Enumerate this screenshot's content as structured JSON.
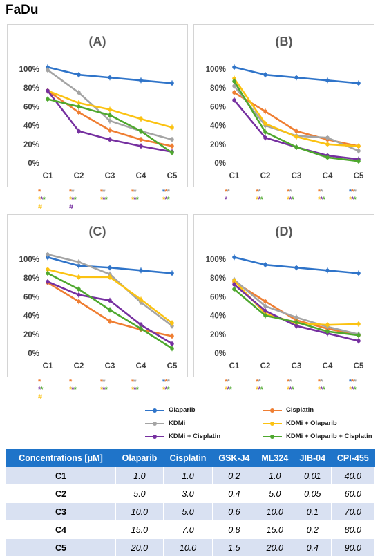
{
  "figure_title": "FaDu",
  "colors": {
    "olaparib": "#2f74c9",
    "cisplatin": "#ef7e32",
    "kdmi": "#a4a4a4",
    "kdmi_olaparib": "#fbc212",
    "kdmi_cisplatin": "#7630a0",
    "kdmi_olaparib_cisplatin": "#4ea82e"
  },
  "chart_data": [
    {
      "type": "line",
      "title": "(A)",
      "categories": [
        "C1",
        "C2",
        "C3",
        "C4",
        "C5"
      ],
      "ylim": [
        0,
        1.0
      ],
      "yticks": [
        "0%",
        "20%",
        "40%",
        "60%",
        "80%",
        "100%"
      ],
      "grid": false,
      "series": [
        {
          "name": "Olaparib",
          "color_key": "olaparib",
          "values": [
            1.02,
            0.94,
            0.91,
            0.88,
            0.85
          ]
        },
        {
          "name": "Cisplatin",
          "color_key": "cisplatin",
          "values": [
            0.77,
            0.54,
            0.35,
            0.25,
            0.18
          ]
        },
        {
          "name": "KDMi",
          "color_key": "kdmi",
          "values": [
            0.99,
            0.75,
            0.45,
            0.34,
            0.25
          ]
        },
        {
          "name": "KDMi + Olaparib",
          "color_key": "kdmi_olaparib",
          "values": [
            0.77,
            0.64,
            0.57,
            0.47,
            0.38
          ]
        },
        {
          "name": "KDMi + Cisplatin",
          "color_key": "kdmi_cisplatin",
          "values": [
            0.77,
            0.34,
            0.25,
            0.18,
            0.12
          ]
        },
        {
          "name": "KDMi + Olaparib + Cisplatin",
          "color_key": "kdmi_olaparib_cisplatin",
          "values": [
            0.68,
            0.6,
            0.51,
            0.34,
            0.11
          ]
        }
      ],
      "significance": [
        [
          [
            [
              "*",
              "cisplatin"
            ]
          ],
          [
            [
              "*",
              "kdmi_olaparib"
            ],
            [
              "*",
              "kdmi_cisplatin"
            ],
            [
              "*",
              "kdmi_olaparib_cisplatin"
            ]
          ],
          [
            [
              "#",
              "kdmi_olaparib"
            ]
          ]
        ],
        [
          [
            [
              "*",
              "cisplatin"
            ],
            [
              "*",
              "kdmi"
            ]
          ],
          [
            [
              "*",
              "kdmi_olaparib"
            ],
            [
              "*",
              "kdmi_cisplatin"
            ],
            [
              "*",
              "kdmi_olaparib_cisplatin"
            ]
          ],
          [
            [
              "#",
              "kdmi_cisplatin"
            ]
          ]
        ],
        [
          [
            [
              "*",
              "cisplatin"
            ],
            [
              "*",
              "kdmi"
            ]
          ],
          [
            [
              "*",
              "kdmi_olaparib"
            ],
            [
              "*",
              "kdmi_cisplatin"
            ],
            [
              "*",
              "kdmi_olaparib_cisplatin"
            ]
          ]
        ],
        [
          [
            [
              "*",
              "cisplatin"
            ],
            [
              "*",
              "kdmi"
            ]
          ],
          [
            [
              "*",
              "kdmi_olaparib"
            ],
            [
              "*",
              "kdmi_cisplatin"
            ],
            [
              "*",
              "kdmi_olaparib_cisplatin"
            ]
          ]
        ],
        [
          [
            [
              "*",
              "olaparib"
            ],
            [
              "*",
              "cisplatin"
            ],
            [
              "*",
              "kdmi"
            ]
          ],
          [
            [
              "*",
              "kdmi_olaparib"
            ],
            [
              "*",
              "kdmi_cisplatin"
            ],
            [
              "*",
              "kdmi_olaparib_cisplatin"
            ]
          ]
        ]
      ]
    },
    {
      "type": "line",
      "title": "(B)",
      "categories": [
        "C1",
        "C2",
        "C3",
        "C4",
        "C5"
      ],
      "ylim": [
        0,
        1.0
      ],
      "yticks": [
        "0%",
        "20%",
        "40%",
        "60%",
        "80%",
        "100%"
      ],
      "grid": false,
      "series": [
        {
          "name": "Olaparib",
          "color_key": "olaparib",
          "values": [
            1.02,
            0.94,
            0.91,
            0.88,
            0.85
          ]
        },
        {
          "name": "Cisplatin",
          "color_key": "cisplatin",
          "values": [
            0.75,
            0.55,
            0.34,
            0.25,
            0.18
          ]
        },
        {
          "name": "KDMi",
          "color_key": "kdmi",
          "values": [
            0.82,
            0.4,
            0.29,
            0.27,
            0.13
          ]
        },
        {
          "name": "KDMi + Olaparib",
          "color_key": "kdmi_olaparib",
          "values": [
            0.9,
            0.42,
            0.28,
            0.2,
            0.18
          ]
        },
        {
          "name": "KDMi + Cisplatin",
          "color_key": "kdmi_cisplatin",
          "values": [
            0.67,
            0.27,
            0.17,
            0.08,
            0.04
          ]
        },
        {
          "name": "KDMi + Olaparib + Cisplatin",
          "color_key": "kdmi_olaparib_cisplatin",
          "values": [
            0.87,
            0.33,
            0.17,
            0.06,
            0.02
          ]
        }
      ],
      "significance": [
        [
          [
            [
              "*",
              "cisplatin"
            ],
            [
              "*",
              "kdmi"
            ]
          ],
          [
            [
              "*",
              "kdmi_cisplatin"
            ]
          ]
        ],
        [
          [
            [
              "*",
              "cisplatin"
            ],
            [
              "*",
              "kdmi"
            ]
          ],
          [
            [
              "*",
              "kdmi_olaparib"
            ],
            [
              "*",
              "kdmi_cisplatin"
            ],
            [
              "*",
              "kdmi_olaparib_cisplatin"
            ]
          ]
        ],
        [
          [
            [
              "*",
              "cisplatin"
            ],
            [
              "*",
              "kdmi"
            ]
          ],
          [
            [
              "*",
              "kdmi_olaparib"
            ],
            [
              "*",
              "kdmi_cisplatin"
            ],
            [
              "*",
              "kdmi_olaparib_cisplatin"
            ]
          ]
        ],
        [
          [
            [
              "*",
              "cisplatin"
            ],
            [
              "*",
              "kdmi"
            ]
          ],
          [
            [
              "*",
              "kdmi_olaparib"
            ],
            [
              "*",
              "kdmi_cisplatin"
            ],
            [
              "*",
              "kdmi_olaparib_cisplatin"
            ]
          ]
        ],
        [
          [
            [
              "*",
              "olaparib"
            ],
            [
              "*",
              "cisplatin"
            ],
            [
              "*",
              "kdmi"
            ]
          ],
          [
            [
              "*",
              "kdmi_olaparib"
            ],
            [
              "*",
              "kdmi_cisplatin"
            ],
            [
              "*",
              "kdmi_olaparib_cisplatin"
            ]
          ]
        ]
      ]
    },
    {
      "type": "line",
      "title": "(C)",
      "categories": [
        "C1",
        "C2",
        "C3",
        "C4",
        "C5"
      ],
      "ylim": [
        0,
        1.0
      ],
      "yticks": [
        "0%",
        "20%",
        "40%",
        "60%",
        "80%",
        "100%"
      ],
      "grid": false,
      "series": [
        {
          "name": "Olaparib",
          "color_key": "olaparib",
          "values": [
            1.02,
            0.93,
            0.91,
            0.88,
            0.85
          ]
        },
        {
          "name": "Cisplatin",
          "color_key": "cisplatin",
          "values": [
            0.75,
            0.55,
            0.34,
            0.25,
            0.18
          ]
        },
        {
          "name": "KDMi",
          "color_key": "kdmi",
          "values": [
            1.05,
            0.97,
            0.84,
            0.54,
            0.29
          ]
        },
        {
          "name": "KDMi + Olaparib",
          "color_key": "kdmi_olaparib",
          "values": [
            0.89,
            0.81,
            0.81,
            0.57,
            0.32
          ]
        },
        {
          "name": "KDMi + Cisplatin",
          "color_key": "kdmi_cisplatin",
          "values": [
            0.76,
            0.62,
            0.56,
            0.3,
            0.1
          ]
        },
        {
          "name": "KDMi + Olaparib + Cisplatin",
          "color_key": "kdmi_olaparib_cisplatin",
          "values": [
            0.85,
            0.68,
            0.46,
            0.26,
            0.05
          ]
        }
      ],
      "significance": [
        [
          [
            [
              "*",
              "cisplatin"
            ]
          ],
          [
            [
              "*",
              "kdmi_cisplatin"
            ],
            [
              "*",
              "kdmi_olaparib_cisplatin"
            ]
          ],
          [
            [
              "#",
              "kdmi_olaparib"
            ]
          ]
        ],
        [
          [
            [
              "*",
              "cisplatin"
            ]
          ],
          [
            [
              "*",
              "kdmi_olaparib"
            ],
            [
              "*",
              "kdmi_cisplatin"
            ],
            [
              "*",
              "kdmi_olaparib_cisplatin"
            ]
          ]
        ],
        [
          [
            [
              "*",
              "cisplatin"
            ],
            [
              "*",
              "kdmi"
            ]
          ],
          [
            [
              "*",
              "kdmi_olaparib"
            ],
            [
              "*",
              "kdmi_cisplatin"
            ],
            [
              "*",
              "kdmi_olaparib_cisplatin"
            ]
          ]
        ],
        [
          [
            [
              "*",
              "cisplatin"
            ],
            [
              "*",
              "kdmi"
            ]
          ],
          [
            [
              "*",
              "kdmi_olaparib"
            ],
            [
              "*",
              "kdmi_cisplatin"
            ],
            [
              "*",
              "kdmi_olaparib_cisplatin"
            ]
          ]
        ],
        [
          [
            [
              "*",
              "olaparib"
            ],
            [
              "*",
              "cisplatin"
            ],
            [
              "*",
              "kdmi"
            ]
          ],
          [
            [
              "*",
              "kdmi_olaparib"
            ],
            [
              "*",
              "kdmi_cisplatin"
            ],
            [
              "*",
              "kdmi_olaparib_cisplatin"
            ]
          ]
        ]
      ]
    },
    {
      "type": "line",
      "title": "(D)",
      "categories": [
        "C1",
        "C2",
        "C3",
        "C4",
        "C5"
      ],
      "ylim": [
        0,
        1.0
      ],
      "yticks": [
        "0%",
        "20%",
        "40%",
        "60%",
        "80%",
        "100%"
      ],
      "grid": false,
      "series": [
        {
          "name": "Olaparib",
          "color_key": "olaparib",
          "values": [
            1.02,
            0.94,
            0.91,
            0.88,
            0.85
          ]
        },
        {
          "name": "Cisplatin",
          "color_key": "cisplatin",
          "values": [
            0.76,
            0.55,
            0.35,
            0.26,
            0.19
          ]
        },
        {
          "name": "KDMi",
          "color_key": "kdmi",
          "values": [
            0.78,
            0.5,
            0.38,
            0.28,
            0.2
          ]
        },
        {
          "name": "KDMi + Olaparib",
          "color_key": "kdmi_olaparib",
          "values": [
            0.77,
            0.42,
            0.32,
            0.3,
            0.31
          ]
        },
        {
          "name": "KDMi + Cisplatin",
          "color_key": "kdmi_cisplatin",
          "values": [
            0.73,
            0.45,
            0.29,
            0.21,
            0.13
          ]
        },
        {
          "name": "KDMi + Olaparib + Cisplatin",
          "color_key": "kdmi_olaparib_cisplatin",
          "values": [
            0.68,
            0.4,
            0.33,
            0.23,
            0.19
          ]
        }
      ],
      "significance": [
        [
          [
            [
              "*",
              "cisplatin"
            ],
            [
              "*",
              "kdmi"
            ]
          ],
          [
            [
              "*",
              "kdmi_olaparib"
            ],
            [
              "*",
              "kdmi_cisplatin"
            ],
            [
              "*",
              "kdmi_olaparib_cisplatin"
            ]
          ]
        ],
        [
          [
            [
              "*",
              "cisplatin"
            ],
            [
              "*",
              "kdmi"
            ]
          ],
          [
            [
              "*",
              "kdmi_olaparib"
            ],
            [
              "*",
              "kdmi_cisplatin"
            ],
            [
              "*",
              "kdmi_olaparib_cisplatin"
            ]
          ]
        ],
        [
          [
            [
              "*",
              "cisplatin"
            ],
            [
              "*",
              "kdmi"
            ]
          ],
          [
            [
              "*",
              "kdmi_olaparib"
            ],
            [
              "*",
              "kdmi_cisplatin"
            ],
            [
              "*",
              "kdmi_olaparib_cisplatin"
            ]
          ]
        ],
        [
          [
            [
              "*",
              "cisplatin"
            ],
            [
              "*",
              "kdmi"
            ]
          ],
          [
            [
              "*",
              "kdmi_olaparib"
            ],
            [
              "*",
              "kdmi_cisplatin"
            ],
            [
              "*",
              "kdmi_olaparib_cisplatin"
            ]
          ]
        ],
        [
          [
            [
              "*",
              "olaparib"
            ],
            [
              "*",
              "cisplatin"
            ],
            [
              "*",
              "kdmi"
            ]
          ],
          [
            [
              "*",
              "kdmi_olaparib"
            ],
            [
              "*",
              "kdmi_cisplatin"
            ],
            [
              "*",
              "kdmi_olaparib_cisplatin"
            ]
          ]
        ]
      ]
    }
  ],
  "legend": [
    {
      "label": "Olaparib",
      "color_key": "olaparib"
    },
    {
      "label": "Cisplatin",
      "color_key": "cisplatin"
    },
    {
      "label": "KDMi",
      "color_key": "kdmi"
    },
    {
      "label": "KDMi + Olaparib",
      "color_key": "kdmi_olaparib"
    },
    {
      "label": "KDMi + Cisplatin",
      "color_key": "kdmi_cisplatin"
    },
    {
      "label": "KDMi + Olaparib + Cisplatin",
      "color_key": "kdmi_olaparib_cisplatin"
    }
  ],
  "table": {
    "headers": [
      "Concentrations [μM]",
      "Olaparib",
      "Cisplatin",
      "GSK-J4",
      "ML324",
      "JIB-04",
      "CPI-455"
    ],
    "rows": [
      [
        "C1",
        "1.0",
        "1.0",
        "0.2",
        "1.0",
        "0.01",
        "40.0"
      ],
      [
        "C2",
        "5.0",
        "3.0",
        "0.4",
        "5.0",
        "0.05",
        "60.0"
      ],
      [
        "C3",
        "10.0",
        "5.0",
        "0.6",
        "10.0",
        "0.1",
        "70.0"
      ],
      [
        "C4",
        "15.0",
        "7.0",
        "0.8",
        "15.0",
        "0.2",
        "80.0"
      ],
      [
        "C5",
        "20.0",
        "10.0",
        "1.5",
        "20.0",
        "0.4",
        "90.0"
      ]
    ]
  }
}
